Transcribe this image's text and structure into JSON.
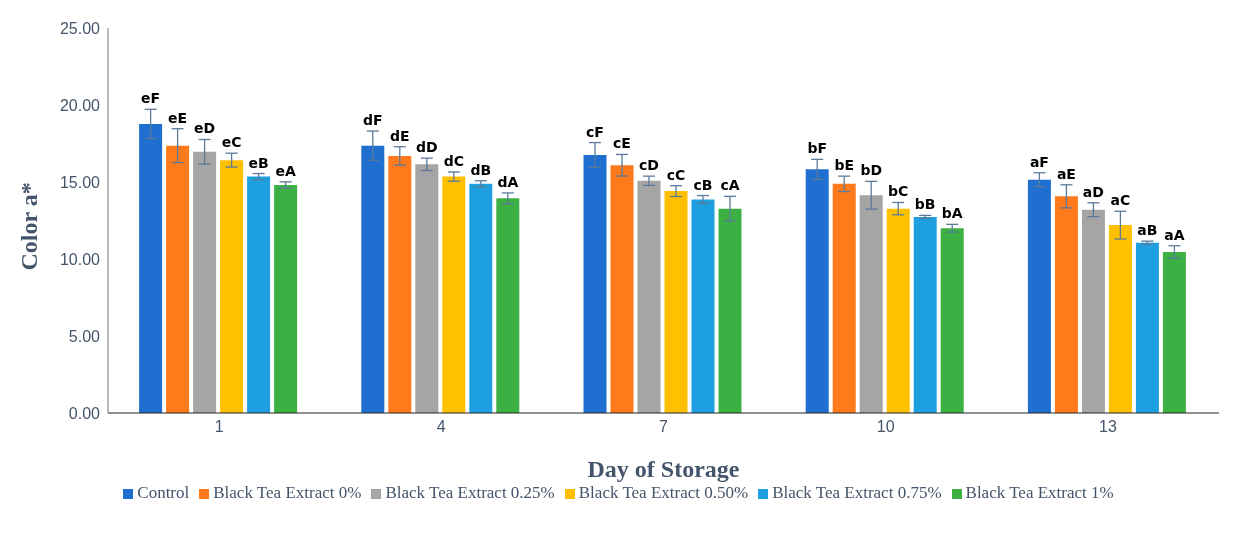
{
  "chart_data": {
    "type": "bar",
    "xlabel": "Day of Storage",
    "ylabel": "Color a*",
    "categories": [
      "1",
      "4",
      "7",
      "10",
      "13"
    ],
    "ylim": [
      0,
      25
    ],
    "yticks": [
      {
        "value": 0,
        "label": "0.00"
      },
      {
        "value": 5,
        "label": "5.00"
      },
      {
        "value": 10,
        "label": "10.00"
      },
      {
        "value": 15,
        "label": "15.00"
      },
      {
        "value": 20,
        "label": "20.00"
      },
      {
        "value": 25,
        "label": "25.00"
      }
    ],
    "grid": false,
    "legend": "bottom",
    "series": [
      {
        "name": "Control",
        "color": "#1f6fd0",
        "values": [
          18.77,
          17.36,
          16.76,
          15.82,
          15.15
        ],
        "errors": [
          0.95,
          0.95,
          0.8,
          0.65,
          0.45
        ],
        "value_labels": [
          "eF",
          "dF",
          "cF",
          "bF",
          "aF"
        ]
      },
      {
        "name": "Black Tea Extract 0%",
        "color": "#ff7a1a",
        "values": [
          17.36,
          16.69,
          16.09,
          14.88,
          14.07
        ],
        "errors": [
          1.1,
          0.6,
          0.7,
          0.5,
          0.75
        ],
        "value_labels": [
          "eE",
          "dE",
          "cE",
          "bE",
          "aE"
        ]
      },
      {
        "name": "Black Tea Extract 0.25%",
        "color": "#a5a5a5",
        "values": [
          16.96,
          16.15,
          15.08,
          14.14,
          13.2
        ],
        "errors": [
          0.8,
          0.4,
          0.3,
          0.9,
          0.45
        ],
        "value_labels": [
          "eD",
          "dD",
          "cD",
          "bD",
          "aD"
        ]
      },
      {
        "name": "Black Tea Extract 0.50%",
        "color": "#ffc000",
        "values": [
          16.42,
          15.35,
          14.41,
          13.27,
          12.2
        ],
        "errors": [
          0.45,
          0.3,
          0.35,
          0.4,
          0.9
        ],
        "value_labels": [
          "eC",
          "dC",
          "cC",
          "bC",
          "aC"
        ]
      },
      {
        "name": "Black Tea Extract 0.75%",
        "color": "#1ea0e0",
        "values": [
          15.35,
          14.88,
          13.87,
          12.73,
          11.06
        ],
        "errors": [
          0.2,
          0.2,
          0.25,
          0.1,
          0.1
        ],
        "value_labels": [
          "eB",
          "dB",
          "cB",
          "bB",
          "aB"
        ]
      },
      {
        "name": "Black Tea Extract 1%",
        "color": "#3cb043",
        "values": [
          14.81,
          13.94,
          13.27,
          12.0,
          10.46
        ],
        "errors": [
          0.2,
          0.35,
          0.8,
          0.25,
          0.4
        ],
        "value_labels": [
          "eA",
          "dA",
          "cA",
          "bA",
          "aA"
        ]
      }
    ]
  }
}
